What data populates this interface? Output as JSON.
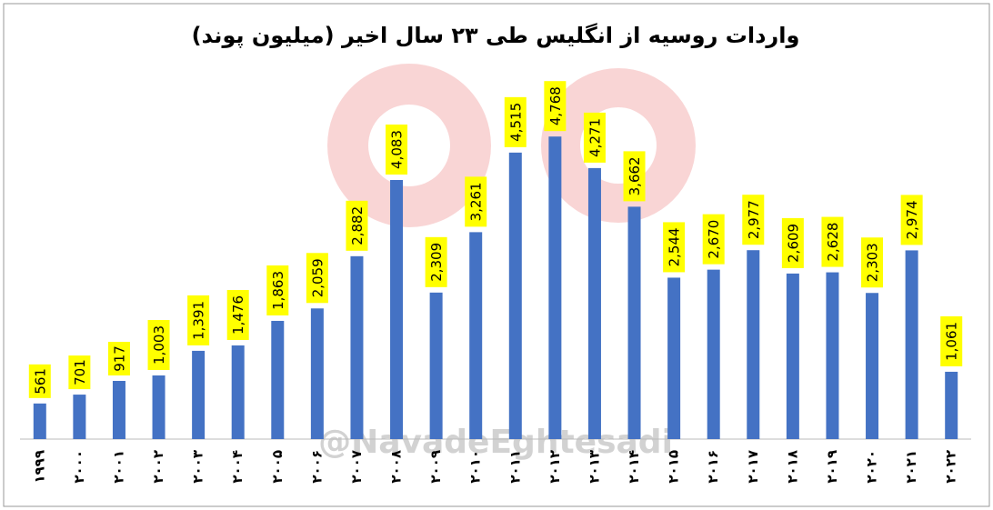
{
  "chart_data": {
    "type": "bar",
    "title": "واردات روسیه از انگلیس طی ۲۳ سال اخیر (میلیون پوند)",
    "watermark": "@NavadeEghtesadi",
    "categories": [
      "۱۹۹۹",
      "۲۰۰۰",
      "۲۰۰۱",
      "۲۰۰۲",
      "۲۰۰۳",
      "۲۰۰۴",
      "۲۰۰۵",
      "۲۰۰۶",
      "۲۰۰۷",
      "۲۰۰۸",
      "۲۰۰۹",
      "۲۰۱۰",
      "۲۰۱۱",
      "۲۰۱۲",
      "۲۰۱۳",
      "۲۰۱۴",
      "۲۰۱۵",
      "۲۰۱۶",
      "۲۰۱۷",
      "۲۰۱۸",
      "۲۰۱۹",
      "۲۰۲۰",
      "۲۰۲۱",
      "۲۰۲۲"
    ],
    "values": [
      561,
      701,
      917,
      1003,
      1391,
      1476,
      1863,
      2059,
      2882,
      4083,
      2309,
      3261,
      4515,
      4768,
      4271,
      3662,
      2544,
      2670,
      2977,
      2609,
      2628,
      2303,
      2974,
      1061
    ],
    "value_labels": [
      "561",
      "701",
      "917",
      "1,003",
      "1,391",
      "1,476",
      "1,863",
      "2,059",
      "2,882",
      "4,083",
      "2,309",
      "3,261",
      "4,515",
      "4,768",
      "4,271",
      "3,662",
      "2,544",
      "2,670",
      "2,977",
      "2,609",
      "2,628",
      "2,303",
      "2,974",
      "1,061"
    ],
    "color": "#4472c4",
    "label_color": "#ffff00",
    "ylim": [
      0,
      5000
    ]
  }
}
